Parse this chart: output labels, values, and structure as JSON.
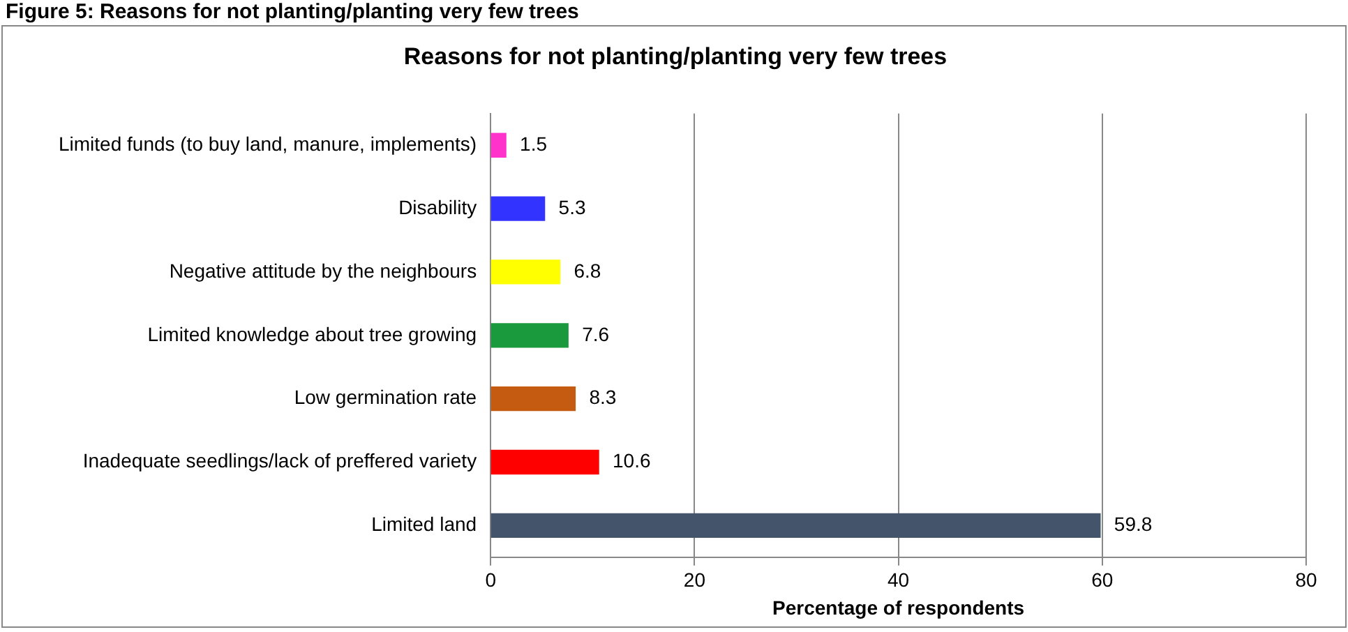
{
  "chart_data": {
    "type": "bar",
    "orientation": "horizontal",
    "title": "Reasons for not planting/planting very few trees",
    "xlabel": "Percentage of respondents",
    "annotations": [
      "Figure 5: Reasons for not planting/planting very few trees"
    ],
    "categories": [
      "Limited funds (to buy land, manure, implements)",
      "Disability",
      "Negative attitude by the neighbours",
      "Limited knowledge about tree growing",
      "Low germination rate",
      "Inadequate seedlings/lack of preffered variety",
      "Limited land"
    ],
    "values": [
      1.5,
      5.3,
      6.8,
      7.6,
      8.3,
      10.6,
      59.8
    ],
    "colors": [
      "#ff33cc",
      "#3333ff",
      "#ffff00",
      "#1a9a3c",
      "#c55a11",
      "#ff0000",
      "#44546a"
    ],
    "xlim": [
      0,
      80
    ],
    "xticks": [
      0,
      20,
      40,
      60,
      80
    ],
    "grid": "x",
    "legend": false,
    "data_labels": true
  }
}
